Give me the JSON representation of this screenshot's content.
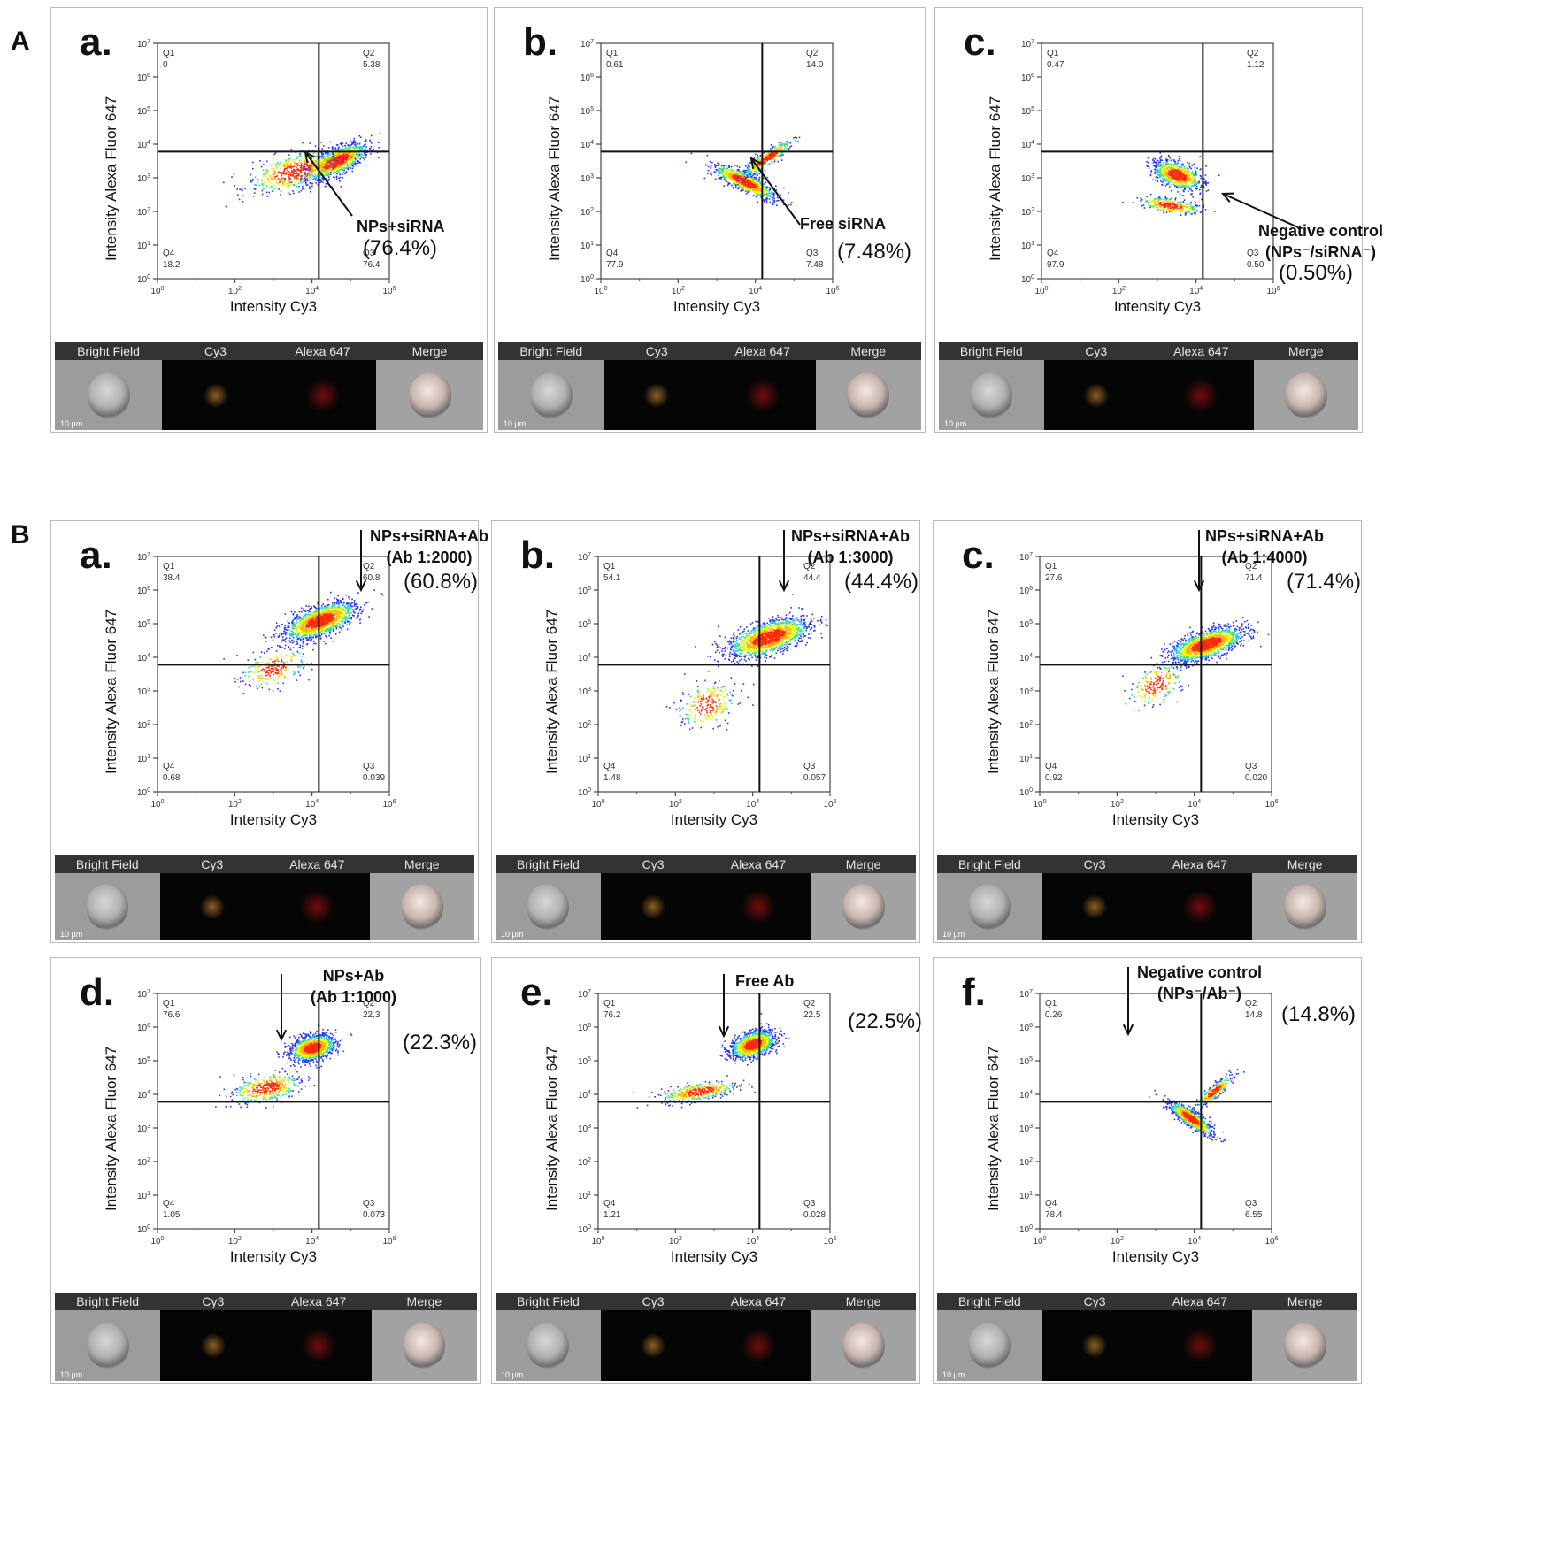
{
  "figure": {
    "sections": [
      "A",
      "B"
    ],
    "strip_labels": [
      "Bright Field",
      "Cy3",
      "Alexa 647",
      "Merge"
    ],
    "scale_bar": "10 µm"
  },
  "chart_data": [
    {
      "panel": "A-a",
      "type": "scatter",
      "letter": "a.",
      "xlabel": "Intensity Cy3",
      "ylabel": "Intensity Alexa Fluor 647",
      "xlim": [
        1,
        1000000
      ],
      "ylim": [
        1,
        10000000
      ],
      "x_tick_labels": [
        "10^0",
        "10^2",
        "10^4",
        "10^6"
      ],
      "y_tick_labels": [
        "10^0",
        "10^1",
        "10^2",
        "10^3",
        "10^4",
        "10^5",
        "10^6",
        "10^7"
      ],
      "gate": {
        "x": 15000,
        "y": 6000
      },
      "quadrants": {
        "Q1": "0",
        "Q2": "5.38",
        "Q3": "76.4",
        "Q4": "18.2"
      },
      "annotation": "NPs+siRNA",
      "highlight": "(76.4%)"
    },
    {
      "panel": "A-b",
      "type": "scatter",
      "letter": "b.",
      "xlabel": "Intensity Cy3",
      "ylabel": "Intensity Alexa Fluor 647",
      "xlim": [
        1,
        1000000
      ],
      "ylim": [
        1,
        10000000
      ],
      "x_tick_labels": [
        "10^0",
        "10^2",
        "10^4",
        "10^6"
      ],
      "y_tick_labels": [
        "10^0",
        "10^1",
        "10^2",
        "10^3",
        "10^4",
        "10^5",
        "10^6",
        "10^7"
      ],
      "gate": {
        "x": 15000,
        "y": 6000
      },
      "quadrants": {
        "Q1": "0.61",
        "Q2": "14.0",
        "Q3": "7.48",
        "Q4": "77.9"
      },
      "annotation": "Free siRNA",
      "highlight": "(7.48%)"
    },
    {
      "panel": "A-c",
      "type": "scatter",
      "letter": "c.",
      "xlabel": "Intensity Cy3",
      "ylabel": "Intensity Alexa Fluor 647",
      "xlim": [
        1,
        1000000
      ],
      "ylim": [
        1,
        10000000
      ],
      "x_tick_labels": [
        "10^0",
        "10^2",
        "10^4",
        "10^6"
      ],
      "y_tick_labels": [
        "10^0",
        "10^1",
        "10^2",
        "10^3",
        "10^4",
        "10^5",
        "10^6",
        "10^7"
      ],
      "gate": {
        "x": 15000,
        "y": 6000
      },
      "quadrants": {
        "Q1": "0.47",
        "Q2": "1.12",
        "Q3": "0.50",
        "Q4": "97.9"
      },
      "annotation": "Negative control",
      "annotation_line2": "(NPs⁻/siRNA⁻)",
      "highlight": "(0.50%)"
    },
    {
      "panel": "B-a",
      "type": "scatter",
      "letter": "a.",
      "xlabel": "Intensity Cy3",
      "ylabel": "Intensity Alexa Fluor 647",
      "xlim": [
        1,
        1000000
      ],
      "ylim": [
        1,
        10000000
      ],
      "x_tick_labels": [
        "10^0",
        "10^2",
        "10^4",
        "10^6"
      ],
      "y_tick_labels": [
        "10^0",
        "10^1",
        "10^2",
        "10^3",
        "10^4",
        "10^5",
        "10^6",
        "10^7"
      ],
      "gate": {
        "x": 15000,
        "y": 6000
      },
      "quadrants": {
        "Q1": "38.4",
        "Q2": "60.8",
        "Q3": "0.039",
        "Q4": "0.68"
      },
      "annotation": "NPs+siRNA+Ab",
      "annotation_line2": "(Ab 1:2000)",
      "highlight": "(60.8%)"
    },
    {
      "panel": "B-b",
      "type": "scatter",
      "letter": "b.",
      "xlabel": "Intensity Cy3",
      "ylabel": "Intensity Alexa Fluor 647",
      "xlim": [
        1,
        1000000
      ],
      "ylim": [
        1,
        10000000
      ],
      "x_tick_labels": [
        "10^0",
        "10^2",
        "10^4",
        "10^6"
      ],
      "y_tick_labels": [
        "10^0",
        "10^1",
        "10^2",
        "10^3",
        "10^4",
        "10^5",
        "10^6",
        "10^7"
      ],
      "gate": {
        "x": 15000,
        "y": 6000
      },
      "quadrants": {
        "Q1": "54.1",
        "Q2": "44.4",
        "Q3": "0.057",
        "Q4": "1.48"
      },
      "annotation": "NPs+siRNA+Ab",
      "annotation_line2": "(Ab 1:3000)",
      "highlight": "(44.4%)"
    },
    {
      "panel": "B-c",
      "type": "scatter",
      "letter": "c.",
      "xlabel": "Intensity Cy3",
      "ylabel": "Intensity Alexa Fluor 647",
      "xlim": [
        1,
        1000000
      ],
      "ylim": [
        1,
        10000000
      ],
      "x_tick_labels": [
        "10^0",
        "10^2",
        "10^4",
        "10^6"
      ],
      "y_tick_labels": [
        "10^0",
        "10^1",
        "10^2",
        "10^3",
        "10^4",
        "10^5",
        "10^6",
        "10^7"
      ],
      "gate": {
        "x": 15000,
        "y": 6000
      },
      "quadrants": {
        "Q1": "27.6",
        "Q2": "71.4",
        "Q3": "0.020",
        "Q4": "0.92"
      },
      "annotation": "NPs+siRNA+Ab",
      "annotation_line2": "(Ab 1:4000)",
      "highlight": "(71.4%)"
    },
    {
      "panel": "B-d",
      "type": "scatter",
      "letter": "d.",
      "xlabel": "Intensity Cy3",
      "ylabel": "Intensity Alexa Fluor 647",
      "xlim": [
        1,
        1000000
      ],
      "ylim": [
        1,
        10000000
      ],
      "x_tick_labels": [
        "10^0",
        "10^2",
        "10^4",
        "10^6"
      ],
      "y_tick_labels": [
        "10^0",
        "10^1",
        "10^2",
        "10^3",
        "10^4",
        "10^5",
        "10^6",
        "10^7"
      ],
      "gate": {
        "x": 15000,
        "y": 6000
      },
      "quadrants": {
        "Q1": "76.6",
        "Q2": "22.3",
        "Q3": "0.073",
        "Q4": "1.05"
      },
      "annotation": "NPs+Ab",
      "annotation_line2": "(Ab 1:1000)",
      "highlight": "(22.3%)"
    },
    {
      "panel": "B-e",
      "type": "scatter",
      "letter": "e.",
      "xlabel": "Intensity Cy3",
      "ylabel": "Intensity Alexa Fluor 647",
      "xlim": [
        1,
        1000000
      ],
      "ylim": [
        1,
        10000000
      ],
      "x_tick_labels": [
        "10^0",
        "10^2",
        "10^4",
        "10^6"
      ],
      "y_tick_labels": [
        "10^0",
        "10^1",
        "10^2",
        "10^3",
        "10^4",
        "10^5",
        "10^6",
        "10^7"
      ],
      "gate": {
        "x": 15000,
        "y": 6000
      },
      "quadrants": {
        "Q1": "76.2",
        "Q2": "22.5",
        "Q3": "0.028",
        "Q4": "1.21"
      },
      "annotation": "Free Ab",
      "highlight": "(22.5%)"
    },
    {
      "panel": "B-f",
      "type": "scatter",
      "letter": "f.",
      "xlabel": "Intensity Cy3",
      "ylabel": "Intensity Alexa Fluor 647",
      "xlim": [
        1,
        1000000
      ],
      "ylim": [
        1,
        10000000
      ],
      "x_tick_labels": [
        "10^0",
        "10^2",
        "10^4",
        "10^6"
      ],
      "y_tick_labels": [
        "10^0",
        "10^1",
        "10^2",
        "10^3",
        "10^4",
        "10^5",
        "10^6",
        "10^7"
      ],
      "gate": {
        "x": 15000,
        "y": 6000
      },
      "quadrants": {
        "Q1": "0.26",
        "Q2": "14.8",
        "Q3": "6.55",
        "Q4": "78.4"
      },
      "annotation": "Negative control",
      "annotation_line2": "(NPs⁻/Ab⁻)",
      "highlight": "(14.8%)"
    }
  ]
}
